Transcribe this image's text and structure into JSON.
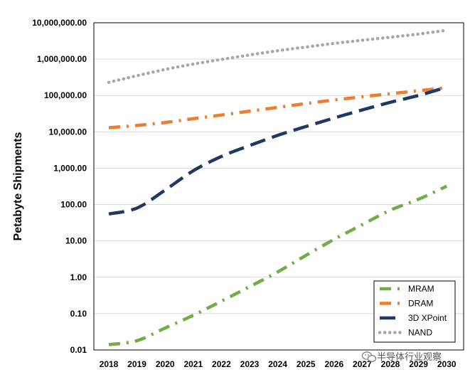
{
  "chart_data": {
    "type": "line",
    "title": "",
    "xlabel": "",
    "ylabel": "Petabyte Shipments",
    "yscale": "log",
    "ylim": [
      0.01,
      10000000
    ],
    "grid": true,
    "legend_position": "bottom-right",
    "x": [
      2018,
      2019,
      2020,
      2021,
      2022,
      2023,
      2024,
      2025,
      2026,
      2027,
      2028,
      2029,
      2030
    ],
    "x_tick_labels": [
      "2018",
      "2019",
      "2020",
      "2021",
      "2022",
      "2023",
      "2024",
      "2025",
      "2026",
      "2027",
      "2028",
      "2029",
      "2030"
    ],
    "y_tick_values": [
      0.01,
      0.1,
      1,
      10,
      100,
      1000,
      10000,
      100000,
      1000000,
      10000000
    ],
    "y_tick_labels": [
      "0.01",
      "0.10",
      "1.00",
      "10.00",
      "100.00",
      "1,000.00",
      "10,000.00",
      "100,000.00",
      "1,000,000.00",
      "10,000,000.00"
    ],
    "series": [
      {
        "name": "MRAM",
        "color": "#70ad47",
        "style": "dashdot",
        "values": [
          0.014,
          0.018,
          0.04,
          0.09,
          0.22,
          0.55,
          1.4,
          4,
          11,
          28,
          70,
          140,
          320
        ]
      },
      {
        "name": "DRAM",
        "color": "#ed7d31",
        "style": "dashdot",
        "values": [
          13000,
          15000,
          18000,
          23000,
          29000,
          37000,
          47000,
          60000,
          75000,
          92000,
          112000,
          135000,
          165000
        ]
      },
      {
        "name": "3D XPoint",
        "color": "#203864",
        "style": "dash",
        "values": [
          55,
          80,
          250,
          850,
          2100,
          4200,
          8000,
          14000,
          24000,
          40000,
          65000,
          100000,
          170000
        ]
      },
      {
        "name": "NAND",
        "color": "#a6a6a6",
        "style": "dot",
        "values": [
          230000,
          350000,
          520000,
          730000,
          980000,
          1300000,
          1700000,
          2150000,
          2700000,
          3300000,
          4000000,
          4900000,
          6200000
        ]
      }
    ]
  },
  "watermark": {
    "text": "半导体行业观察",
    "icon": "wechat-icon"
  }
}
